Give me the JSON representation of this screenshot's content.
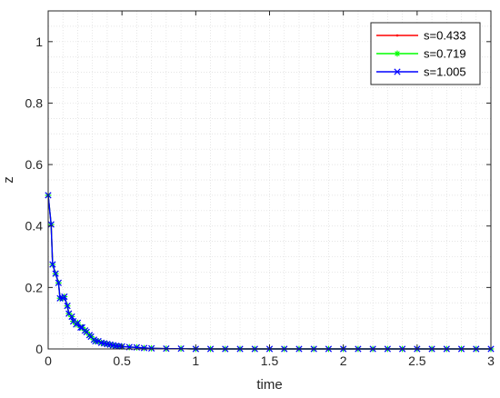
{
  "chart_data": {
    "type": "line",
    "title": "",
    "xlabel": "time",
    "ylabel": "z",
    "xlim": [
      0,
      3
    ],
    "ylim": [
      0,
      1.1
    ],
    "xticks": [
      "0",
      "0.5",
      "1",
      "1.5",
      "2",
      "2.5",
      "3"
    ],
    "yticks": [
      "0",
      "0.2",
      "0.4",
      "0.6",
      "0.8",
      "1"
    ],
    "grid": "dotted-minor-and-major",
    "legend_position": "top-right",
    "x": [
      0,
      0.02,
      0.03,
      0.05,
      0.07,
      0.08,
      0.1,
      0.11,
      0.13,
      0.14,
      0.16,
      0.17,
      0.19,
      0.2,
      0.22,
      0.23,
      0.25,
      0.26,
      0.28,
      0.29,
      0.31,
      0.32,
      0.34,
      0.36,
      0.38,
      0.4,
      0.42,
      0.44,
      0.46,
      0.48,
      0.5,
      0.55,
      0.6,
      0.65,
      0.7,
      0.8,
      0.9,
      1.0,
      1.1,
      1.2,
      1.3,
      1.4,
      1.5,
      1.6,
      1.7,
      1.8,
      1.9,
      2.0,
      2.1,
      2.2,
      2.3,
      2.4,
      2.5,
      2.6,
      2.7,
      2.8,
      2.9,
      3.0
    ],
    "series": [
      {
        "name": "s=0.433",
        "color": "#ff0000",
        "marker": "dot",
        "values": [
          0.5,
          0.405,
          0.275,
          0.245,
          0.215,
          0.165,
          0.165,
          0.17,
          0.14,
          0.115,
          0.105,
          0.09,
          0.08,
          0.085,
          0.07,
          0.07,
          0.06,
          0.055,
          0.045,
          0.04,
          0.03,
          0.025,
          0.025,
          0.02,
          0.018,
          0.016,
          0.014,
          0.012,
          0.01,
          0.009,
          0.008,
          0.006,
          0.005,
          0.003,
          0.002,
          0.001,
          0.001,
          0.0,
          0.0,
          0.0,
          0.0,
          0.0,
          0.0,
          0.0,
          0.0,
          0.0,
          0.0,
          0.0,
          0.0,
          0.0,
          0.0,
          0.0,
          0.0,
          0.0,
          0.0,
          0.0,
          0.0,
          0.0
        ]
      },
      {
        "name": "s=0.719",
        "color": "#00ff00",
        "marker": "asterisk",
        "values": [
          0.5,
          0.405,
          0.275,
          0.245,
          0.215,
          0.165,
          0.165,
          0.17,
          0.14,
          0.115,
          0.105,
          0.09,
          0.08,
          0.085,
          0.07,
          0.07,
          0.06,
          0.055,
          0.045,
          0.04,
          0.03,
          0.025,
          0.025,
          0.02,
          0.018,
          0.016,
          0.014,
          0.012,
          0.01,
          0.009,
          0.008,
          0.006,
          0.005,
          0.003,
          0.002,
          0.001,
          0.001,
          0.0,
          0.0,
          0.0,
          0.0,
          0.0,
          0.0,
          0.0,
          0.0,
          0.0,
          0.0,
          0.0,
          0.0,
          0.0,
          0.0,
          0.0,
          0.0,
          0.0,
          0.0,
          0.0,
          0.0,
          0.0
        ]
      },
      {
        "name": "s=1.005",
        "color": "#0000ff",
        "marker": "x",
        "values": [
          0.5,
          0.405,
          0.275,
          0.245,
          0.215,
          0.165,
          0.165,
          0.17,
          0.14,
          0.115,
          0.105,
          0.09,
          0.08,
          0.085,
          0.07,
          0.07,
          0.06,
          0.055,
          0.045,
          0.04,
          0.03,
          0.025,
          0.025,
          0.02,
          0.018,
          0.016,
          0.014,
          0.012,
          0.01,
          0.009,
          0.008,
          0.006,
          0.005,
          0.003,
          0.002,
          0.001,
          0.001,
          0.0,
          0.0,
          0.0,
          0.0,
          0.0,
          0.0,
          0.0,
          0.0,
          0.0,
          0.0,
          0.0,
          0.0,
          0.0,
          0.0,
          0.0,
          0.0,
          0.0,
          0.0,
          0.0,
          0.0,
          0.0
        ]
      }
    ]
  }
}
